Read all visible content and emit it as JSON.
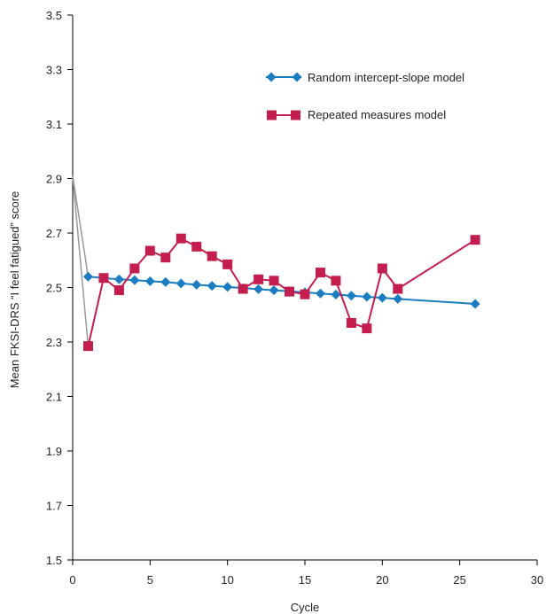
{
  "chart_data": {
    "type": "line",
    "title": "",
    "xlabel": "Cycle",
    "ylabel": "Mean FKSI-DRS “I feel fatigued” score",
    "xlim": [
      0,
      30
    ],
    "ylim": [
      1.5,
      3.5
    ],
    "x_ticks": [
      "0",
      "5",
      "10",
      "15",
      "20",
      "25",
      "30"
    ],
    "y_ticks": [
      "1.5",
      "1.7",
      "1.9",
      "2.1",
      "2.3",
      "2.5",
      "2.7",
      "2.9",
      "3.1",
      "3.3",
      "3.5"
    ],
    "grid": false,
    "legend_position": "top-right",
    "baseline": {
      "x": 0,
      "y": 2.91,
      "color": "#999999"
    },
    "series": [
      {
        "name": "Random intercept-slope model",
        "color": "#1a7cc1",
        "marker": "diamond",
        "x": [
          1,
          2,
          3,
          4,
          5,
          6,
          7,
          8,
          9,
          10,
          11,
          12,
          13,
          14,
          15,
          16,
          17,
          18,
          19,
          20,
          21,
          26
        ],
        "y": [
          2.54,
          2.535,
          2.53,
          2.527,
          2.523,
          2.52,
          2.515,
          2.51,
          2.506,
          2.502,
          2.498,
          2.494,
          2.49,
          2.486,
          2.482,
          2.478,
          2.474,
          2.47,
          2.466,
          2.462,
          2.458,
          2.44
        ]
      },
      {
        "name": "Repeated measures model",
        "color": "#c41e4e",
        "marker": "square",
        "x": [
          1,
          2,
          3,
          4,
          5,
          6,
          7,
          8,
          9,
          10,
          11,
          12,
          13,
          14,
          15,
          16,
          17,
          18,
          19,
          20,
          21,
          26
        ],
        "y": [
          2.285,
          2.535,
          2.49,
          2.57,
          2.635,
          2.61,
          2.68,
          2.65,
          2.615,
          2.585,
          2.495,
          2.53,
          2.525,
          2.485,
          2.475,
          2.555,
          2.525,
          2.37,
          2.35,
          2.57,
          2.495,
          2.675
        ]
      }
    ]
  }
}
